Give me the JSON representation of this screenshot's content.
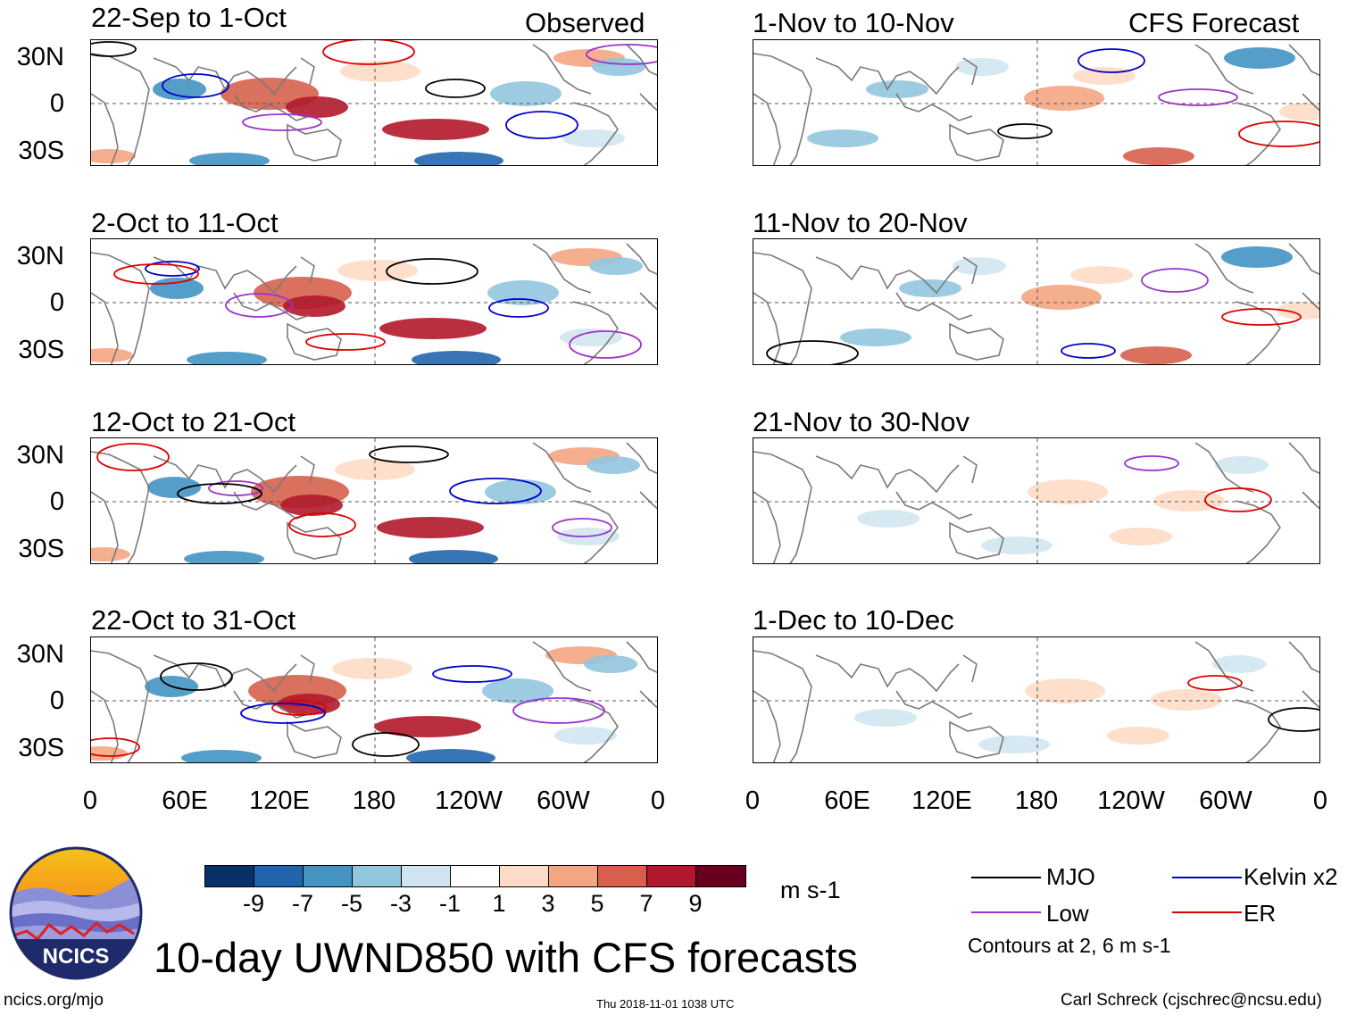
{
  "headers": {
    "left": "Observed",
    "right": "CFS Forecast"
  },
  "panels_left": [
    {
      "title": "22-Sep to 1-Oct",
      "anomaly_level": "strong"
    },
    {
      "title": "2-Oct to 11-Oct",
      "anomaly_level": "strong"
    },
    {
      "title": "12-Oct to 21-Oct",
      "anomaly_level": "strong"
    },
    {
      "title": "22-Oct to 31-Oct",
      "anomaly_level": "strong"
    }
  ],
  "panels_right": [
    {
      "title": "1-Nov to 10-Nov",
      "anomaly_level": "moderate"
    },
    {
      "title": "11-Nov to 20-Nov",
      "anomaly_level": "moderate"
    },
    {
      "title": "21-Nov to 30-Nov",
      "anomaly_level": "weak"
    },
    {
      "title": "1-Dec to 10-Dec",
      "anomaly_level": "weak"
    }
  ],
  "lat_labels": [
    "30N",
    "0",
    "30S"
  ],
  "lon_labels": [
    "0",
    "60E",
    "120E",
    "180",
    "120W",
    "60W",
    "0"
  ],
  "colorbar": {
    "colors": [
      "#08306b",
      "#2166ac",
      "#4393c3",
      "#92c5de",
      "#d1e5f0",
      "#ffffff",
      "#fddbc7",
      "#f4a582",
      "#d6604d",
      "#b2182b",
      "#67001f"
    ],
    "labels": [
      "-9",
      "-7",
      "-5",
      "-3",
      "-1",
      "1",
      "3",
      "5",
      "7",
      "9"
    ],
    "units": "m s-1"
  },
  "legend": {
    "items": [
      {
        "label": "MJO",
        "color": "#000000"
      },
      {
        "label": "Kelvin x2",
        "color": "#0000cc"
      },
      {
        "label": "Low",
        "color": "#9933cc"
      },
      {
        "label": "ER",
        "color": "#dd0000"
      }
    ],
    "note": "Contours at 2, 6 m s-1"
  },
  "main_title": "10-day UWND850 with CFS forecasts",
  "footer": {
    "url": "ncics.org/mjo",
    "timestamp": "Thu 2018-11-01 1038 UTC",
    "credit": "Carl Schreck (cjschrec@ncsu.edu)"
  },
  "logo_text": "NCICS"
}
